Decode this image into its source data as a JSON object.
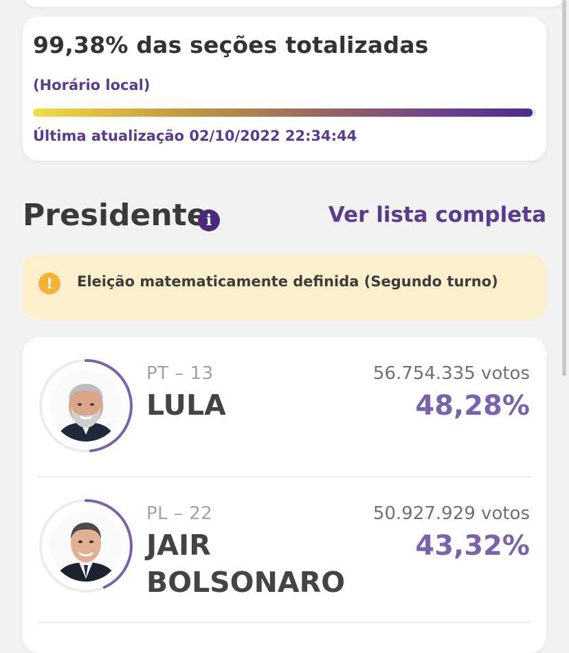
{
  "status": {
    "sections_totalized": "99,38% das seções totalizadas",
    "local_time_label": "(Horário local)",
    "progress_fraction": 0.9938,
    "last_update": "Última atualização 02/10/2022 22:34:44"
  },
  "section": {
    "title": "Presidente",
    "info_icon": "i",
    "full_list_link": "Ver lista completa"
  },
  "notice": {
    "icon": "!",
    "text": "Eleição matematicamente definida (Segundo turno)"
  },
  "candidates": [
    {
      "party": "PT – 13",
      "name": "LULA",
      "votes": "56.754.335 votos",
      "percent": "48,28%",
      "share": 0.4828
    },
    {
      "party": "PL – 22",
      "name_line1": "JAIR",
      "name_line2": "BOLSONARO",
      "votes": "50.927.929 votos",
      "percent": "43,32%",
      "share": 0.4332
    }
  ],
  "colors": {
    "accent": "#5b3b8c",
    "percent": "#7a63a8",
    "notice_bg": "#fcefcc",
    "warning": "#f2b23c"
  }
}
